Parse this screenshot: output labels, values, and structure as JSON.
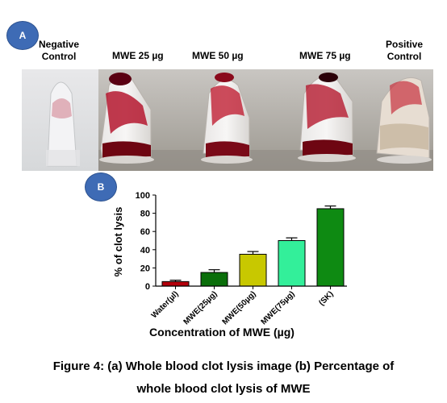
{
  "panel_a": {
    "badge": "A",
    "tube_labels": [
      {
        "line1": "Negative",
        "line2": "Control"
      },
      {
        "line1": "MWE 25 µg",
        "line2": ""
      },
      {
        "line1": "MWE 50 µg",
        "line2": ""
      },
      {
        "line1": "MWE 75 µg",
        "line2": ""
      },
      {
        "line1": "Positive",
        "line2": "Control"
      }
    ]
  },
  "panel_b": {
    "badge": "B"
  },
  "chart_data": {
    "type": "bar",
    "categories": [
      "Water(µl)",
      "MWE(25µg)",
      "MWE(50µg)",
      "MWE(75µg)",
      "(SK)"
    ],
    "values": [
      5,
      15,
      35,
      50,
      85
    ],
    "errors": [
      1.5,
      3,
      3,
      3,
      3
    ],
    "colors": [
      "#b3000c",
      "#0a6e0a",
      "#c8c800",
      "#33ef9a",
      "#0e8a12"
    ],
    "xlabel": "Concentration of MWE (µg)",
    "ylabel": "% of clot lysis",
    "ylim": [
      0,
      100
    ],
    "yticks": [
      0,
      20,
      40,
      60,
      80,
      100
    ],
    "grid": false
  },
  "caption": {
    "line1": "Figure 4: (a) Whole blood clot lysis image (b) Percentage of",
    "line2": "whole blood clot lysis of MWE"
  }
}
